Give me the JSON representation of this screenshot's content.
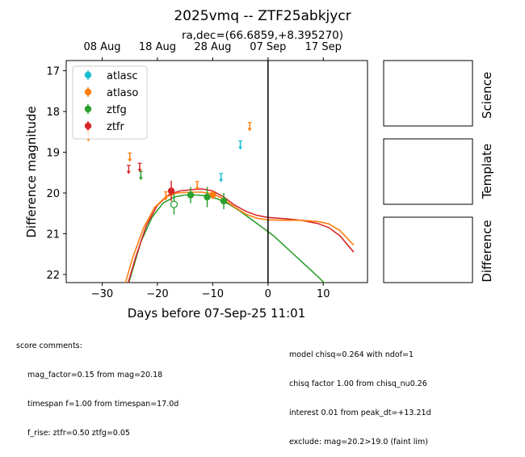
{
  "figure": {
    "title": "2025vmq -- ZTF25abkjycr",
    "subtitle": "ra,dec=(66.6859,+8.395270)",
    "side_panels": [
      "Science",
      "Template",
      "Difference"
    ]
  },
  "score_comments": {
    "heading": "score comments:",
    "lines": [
      "mag_factor=0.15 from mag=20.18",
      "timespan f=1.00 from timespan=17.0d",
      "f_rise: ztfr=0.50 ztfg=0.05"
    ]
  },
  "model_comments": [
    "model chisq=0.264 with ndof=1",
    "chisq factor 1.00 from chisq_nu0.26",
    "interest 0.01 from peak_dt=+13.21d",
    "exclude: mag=20.2>19.0 (faint lim)"
  ],
  "chart_data": {
    "type": "scatter",
    "title": "2025vmq -- ZTF25abkjycr",
    "subtitle": "ra,dec=(66.6859,+8.395270)",
    "xlabel": "Days before 07-Sep-25 11:01",
    "ylabel": "Difference magnitude",
    "xlim": [
      -36.5,
      18
    ],
    "ylim": [
      22.2,
      16.75
    ],
    "y_inverted": true,
    "xticks": [
      -30,
      -20,
      -10,
      0,
      10
    ],
    "yticks": [
      17,
      18,
      19,
      20,
      21,
      22
    ],
    "top_axis_ticks": [
      {
        "label": "08 Aug",
        "x": -30
      },
      {
        "label": "18 Aug",
        "x": -20
      },
      {
        "label": "28 Aug",
        "x": -10
      },
      {
        "label": "07 Sep",
        "x": 0
      },
      {
        "label": "17 Sep",
        "x": 10
      }
    ],
    "vline_x": 0,
    "legend": {
      "placement": "upper-left",
      "entries": [
        "atlasc",
        "atlaso",
        "ztfg",
        "ztfr"
      ]
    },
    "grid": false,
    "series": [
      {
        "name": "atlasc",
        "color": "#17becf",
        "upper_limits": [
          {
            "x": -8.5,
            "y": 19.6
          },
          {
            "x": -5.0,
            "y": 18.8
          }
        ]
      },
      {
        "name": "atlaso",
        "color": "#ff7f0e",
        "upper_limits": [
          {
            "x": -32.5,
            "y": 18.6
          },
          {
            "x": -25.0,
            "y": 19.1
          },
          {
            "x": -18.5,
            "y": 20.05
          },
          {
            "x": -12.8,
            "y": 19.8
          },
          {
            "x": -3.3,
            "y": 18.35
          }
        ],
        "points": [
          {
            "x": -10.0,
            "y": 20.05,
            "err": 0.1
          }
        ]
      },
      {
        "name": "ztfg",
        "color": "#2ca02c",
        "upper_limits": [
          {
            "x": -23.0,
            "y": 19.55
          }
        ],
        "points": [
          {
            "x": -14.0,
            "y": 20.05,
            "err": 0.2
          },
          {
            "x": -11.0,
            "y": 20.1,
            "err": 0.25
          },
          {
            "x": -8.0,
            "y": 20.2,
            "err": 0.2
          }
        ],
        "open_points": [
          {
            "x": -17.0,
            "y": 20.28,
            "err": 0.25
          }
        ],
        "model_curve": [
          [
            -25.5,
            22.35
          ],
          [
            -23,
            21.2
          ],
          [
            -21,
            20.6
          ],
          [
            -19,
            20.25
          ],
          [
            -17,
            20.1
          ],
          [
            -15,
            20.05
          ],
          [
            -13,
            20.05
          ],
          [
            -11,
            20.07
          ],
          [
            -9,
            20.15
          ],
          [
            -7,
            20.28
          ],
          [
            -5,
            20.45
          ],
          [
            -3,
            20.65
          ],
          [
            -1,
            20.85
          ],
          [
            1,
            21.05
          ],
          [
            3,
            21.3
          ],
          [
            5,
            21.55
          ],
          [
            7,
            21.8
          ],
          [
            9,
            22.05
          ],
          [
            10.5,
            22.25
          ]
        ]
      },
      {
        "name": "ztfr",
        "color": "#d62728",
        "upper_limits": [
          {
            "x": -25.2,
            "y": 19.4
          },
          {
            "x": -23.2,
            "y": 19.35
          }
        ],
        "points": [
          {
            "x": -17.5,
            "y": 19.95,
            "err": 0.25
          }
        ],
        "model_curve": [
          [
            -25.5,
            22.3
          ],
          [
            -24,
            21.6
          ],
          [
            -22,
            20.8
          ],
          [
            -20,
            20.3
          ],
          [
            -18,
            20.05
          ],
          [
            -16,
            19.95
          ],
          [
            -14,
            19.92
          ],
          [
            -12,
            19.9
          ],
          [
            -10,
            19.95
          ],
          [
            -8,
            20.1
          ],
          [
            -6,
            20.3
          ],
          [
            -4,
            20.45
          ],
          [
            -2,
            20.55
          ],
          [
            0,
            20.6
          ],
          [
            3,
            20.63
          ],
          [
            6,
            20.67
          ],
          [
            9,
            20.75
          ],
          [
            11,
            20.85
          ],
          [
            13,
            21.05
          ],
          [
            15.5,
            21.45
          ]
        ]
      },
      {
        "name": "atlaso-model",
        "color": "#ff7f0e",
        "model_curve": [
          [
            -26,
            22.3
          ],
          [
            -24.5,
            21.6
          ],
          [
            -22.5,
            20.85
          ],
          [
            -20.5,
            20.35
          ],
          [
            -18.5,
            20.1
          ],
          [
            -16.5,
            20.0
          ],
          [
            -14,
            19.98
          ],
          [
            -12,
            19.98
          ],
          [
            -10,
            20.02
          ],
          [
            -8,
            20.15
          ],
          [
            -6,
            20.35
          ],
          [
            -4,
            20.52
          ],
          [
            -2,
            20.62
          ],
          [
            0,
            20.66
          ],
          [
            3,
            20.67
          ],
          [
            6,
            20.67
          ],
          [
            9,
            20.7
          ],
          [
            11,
            20.76
          ],
          [
            13,
            20.92
          ],
          [
            15.5,
            21.28
          ]
        ]
      }
    ]
  }
}
